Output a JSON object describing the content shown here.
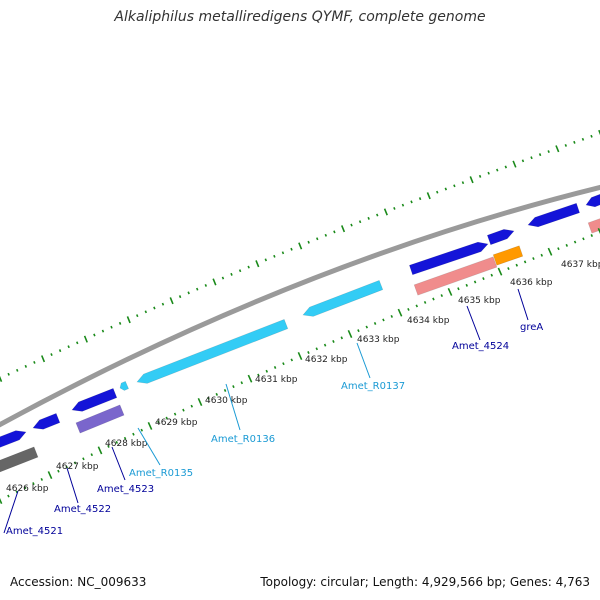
{
  "title": "Alkaliphilus metalliredigens QYMF, complete genome",
  "footer": {
    "accession": "Accession: NC_009633",
    "topology": "Topology: circular; Length: 4,929,566 bp; Genes: 4,763"
  },
  "colors": {
    "backbone": "#9a9a9a",
    "tick": "#1a8a1a",
    "cds": "#1414d8",
    "rna": "#33ccf5",
    "rna_dark": "#1a9ac0",
    "pink": "#f08c8c",
    "purple": "#7a66cc",
    "orange": "#ff9900",
    "gray": "#666666",
    "label_blue": "#000099",
    "label_cyan": "#1a9ad4"
  },
  "scale_labels": [
    "4626 kbp",
    "4627 kbp",
    "4628 kbp",
    "4629 kbp",
    "4630 kbp",
    "4631 kbp",
    "4632 kbp",
    "4633 kbp",
    "4634 kbp",
    "4635 kbp",
    "4636 kbp",
    "4637 kbp"
  ],
  "gene_labels": [
    {
      "name": "Amet_4521",
      "kind": "cds"
    },
    {
      "name": "Amet_4522",
      "kind": "cds"
    },
    {
      "name": "Amet_4523",
      "kind": "cds"
    },
    {
      "name": "Amet_R0135",
      "kind": "rna"
    },
    {
      "name": "Amet_R0136",
      "kind": "rna"
    },
    {
      "name": "Amet_R0137",
      "kind": "rna"
    },
    {
      "name": "Amet_4524",
      "kind": "cds"
    },
    {
      "name": "greA",
      "kind": "cds"
    }
  ]
}
